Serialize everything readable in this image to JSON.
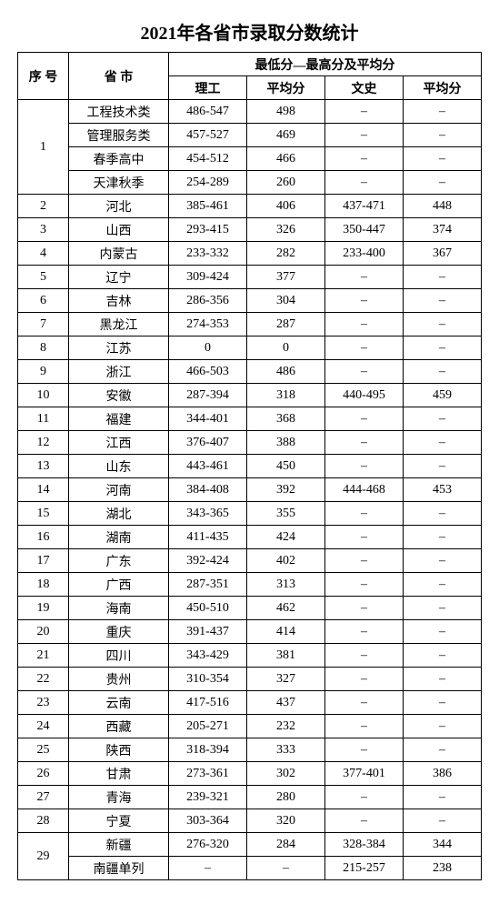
{
  "title": "2021年各省市录取分数统计",
  "title_fontsize": 20,
  "cell_fontsize": 14,
  "colors": {
    "border": "#000000",
    "text": "#000000",
    "bg": "#ffffff"
  },
  "headers": {
    "seq": "序 号",
    "province": "省 市",
    "group": "最低分—最高分及平均分",
    "sci_range": "理工",
    "sci_avg": "平均分",
    "art_range": "文史",
    "art_avg": "平均分"
  },
  "groups": [
    {
      "seq": "1",
      "rows": [
        {
          "province": "工程技术类",
          "sci_range": "486-547",
          "sci_avg": "498",
          "art_range": "–",
          "art_avg": "–"
        },
        {
          "province": "管理服务类",
          "sci_range": "457-527",
          "sci_avg": "469",
          "art_range": "–",
          "art_avg": "–"
        },
        {
          "province": "春季高中",
          "sci_range": "454-512",
          "sci_avg": "466",
          "art_range": "–",
          "art_avg": "–"
        },
        {
          "province": "天津秋季",
          "sci_range": "254-289",
          "sci_avg": "260",
          "art_range": "–",
          "art_avg": "–"
        }
      ]
    },
    {
      "seq": "2",
      "rows": [
        {
          "province": "河北",
          "sci_range": "385-461",
          "sci_avg": "406",
          "art_range": "437-471",
          "art_avg": "448"
        }
      ]
    },
    {
      "seq": "3",
      "rows": [
        {
          "province": "山西",
          "sci_range": "293-415",
          "sci_avg": "326",
          "art_range": "350-447",
          "art_avg": "374"
        }
      ]
    },
    {
      "seq": "4",
      "rows": [
        {
          "province": "内蒙古",
          "sci_range": "233-332",
          "sci_avg": "282",
          "art_range": "233-400",
          "art_avg": "367"
        }
      ]
    },
    {
      "seq": "5",
      "rows": [
        {
          "province": "辽宁",
          "sci_range": "309-424",
          "sci_avg": "377",
          "art_range": "–",
          "art_avg": "–"
        }
      ]
    },
    {
      "seq": "6",
      "rows": [
        {
          "province": "吉林",
          "sci_range": "286-356",
          "sci_avg": "304",
          "art_range": "–",
          "art_avg": "–"
        }
      ]
    },
    {
      "seq": "7",
      "rows": [
        {
          "province": "黑龙江",
          "sci_range": "274-353",
          "sci_avg": "287",
          "art_range": "–",
          "art_avg": "–"
        }
      ]
    },
    {
      "seq": "8",
      "rows": [
        {
          "province": "江苏",
          "sci_range": "0",
          "sci_avg": "0",
          "art_range": "–",
          "art_avg": "–"
        }
      ]
    },
    {
      "seq": "9",
      "rows": [
        {
          "province": "浙江",
          "sci_range": "466-503",
          "sci_avg": "486",
          "art_range": "–",
          "art_avg": "–"
        }
      ]
    },
    {
      "seq": "10",
      "rows": [
        {
          "province": "安徽",
          "sci_range": "287-394",
          "sci_avg": "318",
          "art_range": "440-495",
          "art_avg": "459"
        }
      ]
    },
    {
      "seq": "11",
      "rows": [
        {
          "province": "福建",
          "sci_range": "344-401",
          "sci_avg": "368",
          "art_range": "–",
          "art_avg": "–"
        }
      ]
    },
    {
      "seq": "12",
      "rows": [
        {
          "province": "江西",
          "sci_range": "376-407",
          "sci_avg": "388",
          "art_range": "–",
          "art_avg": "–"
        }
      ]
    },
    {
      "seq": "13",
      "rows": [
        {
          "province": "山东",
          "sci_range": "443-461",
          "sci_avg": "450",
          "art_range": "–",
          "art_avg": "–"
        }
      ]
    },
    {
      "seq": "14",
      "rows": [
        {
          "province": "河南",
          "sci_range": "384-408",
          "sci_avg": "392",
          "art_range": "444-468",
          "art_avg": "453"
        }
      ]
    },
    {
      "seq": "15",
      "rows": [
        {
          "province": "湖北",
          "sci_range": "343-365",
          "sci_avg": "355",
          "art_range": "–",
          "art_avg": "–"
        }
      ]
    },
    {
      "seq": "16",
      "rows": [
        {
          "province": "湖南",
          "sci_range": "411-435",
          "sci_avg": "424",
          "art_range": "–",
          "art_avg": "–"
        }
      ]
    },
    {
      "seq": "17",
      "rows": [
        {
          "province": "广东",
          "sci_range": "392-424",
          "sci_avg": "402",
          "art_range": "–",
          "art_avg": "–"
        }
      ]
    },
    {
      "seq": "18",
      "rows": [
        {
          "province": "广西",
          "sci_range": "287-351",
          "sci_avg": "313",
          "art_range": "–",
          "art_avg": "–"
        }
      ]
    },
    {
      "seq": "19",
      "rows": [
        {
          "province": "海南",
          "sci_range": "450-510",
          "sci_avg": "462",
          "art_range": "–",
          "art_avg": "–"
        }
      ]
    },
    {
      "seq": "20",
      "rows": [
        {
          "province": "重庆",
          "sci_range": "391-437",
          "sci_avg": "414",
          "art_range": "–",
          "art_avg": "–"
        }
      ]
    },
    {
      "seq": "21",
      "rows": [
        {
          "province": "四川",
          "sci_range": "343-429",
          "sci_avg": "381",
          "art_range": "–",
          "art_avg": "–"
        }
      ]
    },
    {
      "seq": "22",
      "rows": [
        {
          "province": "贵州",
          "sci_range": "310-354",
          "sci_avg": "327",
          "art_range": "–",
          "art_avg": "–"
        }
      ]
    },
    {
      "seq": "23",
      "rows": [
        {
          "province": "云南",
          "sci_range": "417-516",
          "sci_avg": "437",
          "art_range": "–",
          "art_avg": "–"
        }
      ]
    },
    {
      "seq": "24",
      "rows": [
        {
          "province": "西藏",
          "sci_range": "205-271",
          "sci_avg": "232",
          "art_range": "–",
          "art_avg": "–"
        }
      ]
    },
    {
      "seq": "25",
      "rows": [
        {
          "province": "陕西",
          "sci_range": "318-394",
          "sci_avg": "333",
          "art_range": "–",
          "art_avg": "–"
        }
      ]
    },
    {
      "seq": "26",
      "rows": [
        {
          "province": "甘肃",
          "sci_range": "273-361",
          "sci_avg": "302",
          "art_range": "377-401",
          "art_avg": "386"
        }
      ]
    },
    {
      "seq": "27",
      "rows": [
        {
          "province": "青海",
          "sci_range": "239-321",
          "sci_avg": "280",
          "art_range": "–",
          "art_avg": "–"
        }
      ]
    },
    {
      "seq": "28",
      "rows": [
        {
          "province": "宁夏",
          "sci_range": "303-364",
          "sci_avg": "320",
          "art_range": "–",
          "art_avg": "–"
        }
      ]
    },
    {
      "seq": "29",
      "rows": [
        {
          "province": "新疆",
          "sci_range": "276-320",
          "sci_avg": "284",
          "art_range": "328-384",
          "art_avg": "344"
        },
        {
          "province": "南疆单列",
          "sci_range": "–",
          "sci_avg": "–",
          "art_range": "215-257",
          "art_avg": "238"
        }
      ]
    }
  ]
}
